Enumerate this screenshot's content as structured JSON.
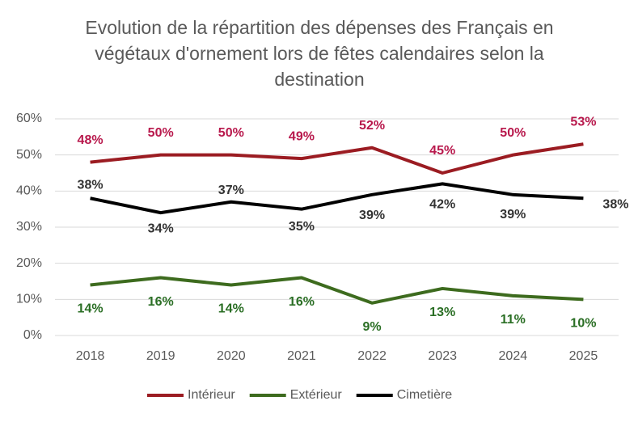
{
  "chart_data": {
    "type": "line",
    "title": "Evolution de la répartition des dépenses des Français en végétaux d'ornement lors de fêtes calendaires selon la destination",
    "categories": [
      "2018",
      "2019",
      "2020",
      "2021",
      "2022",
      "2023",
      "2024",
      "2025"
    ],
    "series": [
      {
        "name": "Intérieur",
        "color": "#9b1c22",
        "label_color": "#b8184c",
        "values": [
          48,
          50,
          50,
          49,
          52,
          45,
          50,
          53
        ],
        "value_labels": [
          "48%",
          "50%",
          "50%",
          "49%",
          "52%",
          "45%",
          "50%",
          "53%"
        ]
      },
      {
        "name": "Extérieur",
        "color": "#3d6b1e",
        "label_color": "#2a6e24",
        "values": [
          14,
          16,
          14,
          16,
          9,
          13,
          11,
          10
        ],
        "value_labels": [
          "14%",
          "16%",
          "14%",
          "16%",
          "9%",
          "13%",
          "11%",
          "10%"
        ]
      },
      {
        "name": "Cimetière",
        "color": "#000000",
        "label_color": "#333333",
        "values": [
          38,
          34,
          37,
          35,
          39,
          42,
          39,
          38
        ],
        "value_labels": [
          "38%",
          "34%",
          "37%",
          "35%",
          "39%",
          "42%",
          "39%",
          "38%"
        ]
      }
    ],
    "ylim": [
      0,
      60
    ],
    "yticks": [
      {
        "value": 0,
        "label": "0%"
      },
      {
        "value": 10,
        "label": "10%"
      },
      {
        "value": 20,
        "label": "20%"
      },
      {
        "value": 30,
        "label": "30%"
      },
      {
        "value": 40,
        "label": "40%"
      },
      {
        "value": 50,
        "label": "50%"
      },
      {
        "value": 60,
        "label": "60%"
      }
    ],
    "grid": true,
    "legend": "bottom"
  }
}
